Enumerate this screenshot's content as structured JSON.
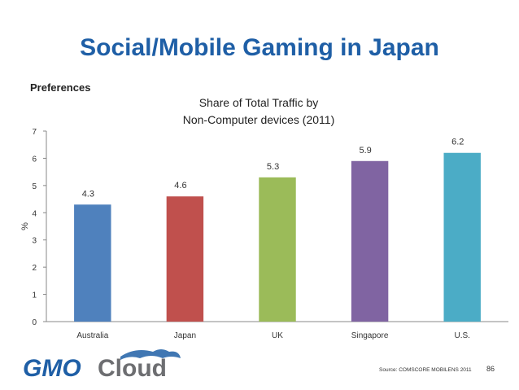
{
  "slide": {
    "title": "Social/Mobile Gaming in Japan",
    "subtitle": "Preferences",
    "source": "Source: COMSCORE MOBILENS 2011",
    "page_number": "86",
    "logo_text": {
      "part1": "GMO",
      "part2": "Cloud"
    }
  },
  "colors": {
    "title": "#1f5fa6",
    "logo_blue": "#1f5fa6",
    "logo_gray": "#6d6e71"
  },
  "chart_data": {
    "type": "bar",
    "title_lines": [
      "Share of Total Traffic by",
      "Non-Computer devices (2011)"
    ],
    "ylabel": "%",
    "xlabel": "",
    "ylim": [
      0,
      7
    ],
    "yticks": [
      0,
      1,
      2,
      3,
      4,
      5,
      6,
      7
    ],
    "grid": false,
    "categories": [
      "Australia",
      "Japan",
      "UK",
      "Singapore",
      "U.S."
    ],
    "values": [
      4.3,
      4.6,
      5.3,
      5.9,
      6.2
    ],
    "value_labels": [
      "4.3",
      "4.6",
      "5.3",
      "5.9",
      "6.2"
    ],
    "bar_colors": [
      "#4f81bd",
      "#c0504d",
      "#9bbb59",
      "#8064a2",
      "#4bacc6"
    ]
  }
}
